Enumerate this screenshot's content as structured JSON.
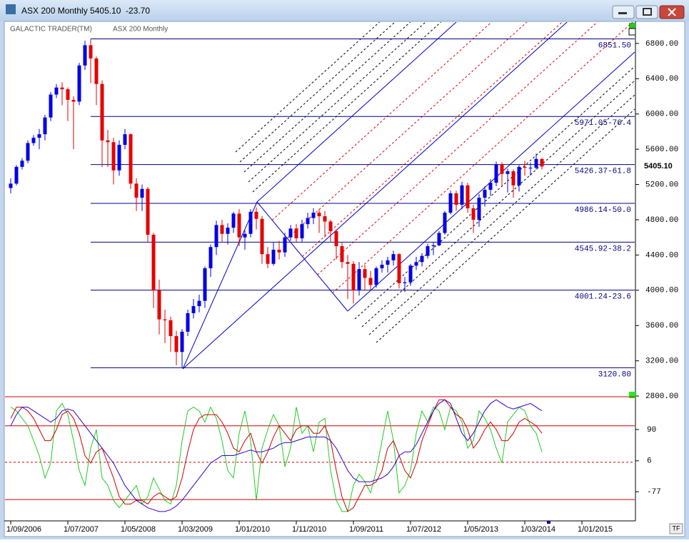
{
  "window": {
    "title": "ASX 200 Monthly 5405.10",
    "change": "-23.70",
    "corner_button": "TF"
  },
  "chart_data": {
    "type": "candlestick",
    "title": "GALACTIC TRADER(TM)",
    "subtitle": "ASX 200 Monthly",
    "x": [
      "2006-09",
      "2006-10",
      "2006-11",
      "2006-12",
      "2007-01",
      "2007-02",
      "2007-03",
      "2007-04",
      "2007-05",
      "2007-06",
      "2007-07",
      "2007-08",
      "2007-09",
      "2007-10",
      "2007-11",
      "2007-12",
      "2008-01",
      "2008-02",
      "2008-03",
      "2008-04",
      "2008-05",
      "2008-06",
      "2008-07",
      "2008-08",
      "2008-09",
      "2008-10",
      "2008-11",
      "2008-12",
      "2009-01",
      "2009-02",
      "2009-03",
      "2009-04",
      "2009-05",
      "2009-06",
      "2009-07",
      "2009-08",
      "2009-09",
      "2009-10",
      "2009-11",
      "2009-12",
      "2010-01",
      "2010-02",
      "2010-03",
      "2010-04",
      "2010-05",
      "2010-06",
      "2010-07",
      "2010-08",
      "2010-09",
      "2010-10",
      "2010-11",
      "2010-12",
      "2011-01",
      "2011-02",
      "2011-03",
      "2011-04",
      "2011-05",
      "2011-06",
      "2011-07",
      "2011-08",
      "2011-09",
      "2011-10",
      "2011-11",
      "2011-12",
      "2012-01",
      "2012-02",
      "2012-03",
      "2012-04",
      "2012-05",
      "2012-06",
      "2012-07",
      "2012-08",
      "2012-09",
      "2012-10",
      "2012-11",
      "2012-12",
      "2013-01",
      "2013-02",
      "2013-03",
      "2013-04",
      "2013-05",
      "2013-06",
      "2013-07",
      "2013-08",
      "2013-09",
      "2013-10",
      "2013-11",
      "2013-12",
      "2014-01",
      "2014-02",
      "2014-03",
      "2014-04",
      "2014-05",
      "2014-06"
    ],
    "open": [
      5160,
      5210,
      5400,
      5470,
      5670,
      5730,
      5770,
      5960,
      6220,
      6300,
      6280,
      6160,
      6140,
      6550,
      6780,
      6630,
      6340,
      5700,
      5680,
      5360,
      5650,
      5770,
      5210,
      5050,
      5150,
      4630,
      4000,
      3670,
      3660,
      3480,
      3300,
      3530,
      3740,
      3820,
      3880,
      4250,
      4490,
      4740,
      4640,
      4710,
      4870,
      4600,
      4640,
      4890,
      4810,
      4410,
      4300,
      4460,
      4430,
      4600,
      4700,
      4590,
      4750,
      4820,
      4880,
      4840,
      4780,
      4670,
      4500,
      4320,
      4300,
      4000,
      4240,
      4140,
      4060,
      4250,
      4290,
      4340,
      4410,
      4080,
      4090,
      4280,
      4320,
      4390,
      4500,
      4510,
      4650,
      4880,
      5100,
      4970,
      5190,
      4930,
      4800,
      5050,
      5140,
      5220,
      5430,
      5320,
      5350,
      5190,
      5400,
      5390,
      5390,
      5490
    ],
    "high": [
      5270,
      5420,
      5500,
      5700,
      5760,
      5830,
      5990,
      6250,
      6340,
      6360,
      6300,
      6200,
      6580,
      6830,
      6851,
      6650,
      6380,
      5820,
      5730,
      5700,
      5830,
      5780,
      5270,
      5200,
      5170,
      4650,
      4120,
      3780,
      3700,
      3540,
      3560,
      3780,
      3900,
      3950,
      4270,
      4520,
      4790,
      4800,
      4760,
      4890,
      4920,
      4680,
      4920,
      4940,
      4840,
      4490,
      4540,
      4560,
      4650,
      4740,
      4750,
      4800,
      4880,
      4930,
      4920,
      4900,
      4800,
      4690,
      4540,
      4400,
      4330,
      4320,
      4290,
      4220,
      4270,
      4340,
      4380,
      4450,
      4420,
      4150,
      4300,
      4380,
      4420,
      4530,
      4550,
      4670,
      4900,
      5130,
      5130,
      5230,
      5220,
      4970,
      5090,
      5180,
      5260,
      5460,
      5450,
      5380,
      5370,
      5420,
      5470,
      5450,
      5550,
      5500
    ],
    "low": [
      5100,
      5190,
      5370,
      5440,
      5640,
      5600,
      5700,
      5920,
      6180,
      6100,
      5920,
      5600,
      6100,
      6500,
      6350,
      6100,
      5400,
      5400,
      5200,
      5300,
      5600,
      5150,
      4900,
      4900,
      4550,
      3800,
      3500,
      3400,
      3300,
      3150,
      3120,
      3480,
      3680,
      3750,
      3800,
      4150,
      4400,
      4540,
      4520,
      4650,
      4500,
      4460,
      4600,
      4690,
      4300,
      4250,
      4280,
      4350,
      4380,
      4560,
      4550,
      4550,
      4700,
      4750,
      4650,
      4600,
      4550,
      4350,
      4250,
      3900,
      3850,
      3940,
      4000,
      4000,
      4030,
      4200,
      4200,
      4280,
      4020,
      3980,
      4050,
      4230,
      4270,
      4360,
      4400,
      4500,
      4630,
      4860,
      4900,
      4920,
      4880,
      4650,
      4720,
      4950,
      5070,
      5180,
      5180,
      5110,
      5050,
      5120,
      5300,
      5300,
      5370,
      5370
    ],
    "close": [
      5210,
      5400,
      5470,
      5670,
      5730,
      5770,
      5960,
      6220,
      6300,
      6280,
      6160,
      6140,
      6550,
      6780,
      6630,
      6340,
      5700,
      5680,
      5360,
      5650,
      5770,
      5210,
      5050,
      5150,
      4630,
      4000,
      3670,
      3660,
      3480,
      3300,
      3530,
      3740,
      3820,
      3880,
      4250,
      4490,
      4740,
      4640,
      4710,
      4870,
      4600,
      4640,
      4890,
      4810,
      4410,
      4300,
      4460,
      4430,
      4600,
      4700,
      4590,
      4750,
      4820,
      4880,
      4840,
      4780,
      4670,
      4500,
      4320,
      4300,
      4000,
      4240,
      4140,
      4060,
      4250,
      4290,
      4340,
      4410,
      4080,
      4090,
      4280,
      4320,
      4390,
      4500,
      4510,
      4650,
      4880,
      5100,
      4970,
      5190,
      4930,
      4800,
      5050,
      5140,
      5220,
      5430,
      5320,
      5350,
      5190,
      5400,
      5390,
      5390,
      5490,
      5405
    ],
    "up_color": "#0000e6",
    "down_color": "#e60000",
    "xlim": [
      "2006-08",
      "2015-10"
    ],
    "xticks": [
      {
        "value": "2006-09",
        "label": "1/09/2006"
      },
      {
        "value": "2007-07",
        "label": "1/07/2007"
      },
      {
        "value": "2008-05",
        "label": "1/05/2008"
      },
      {
        "value": "2009-03",
        "label": "1/03/2009"
      },
      {
        "value": "2010-01",
        "label": "1/01/2010"
      },
      {
        "value": "2010-11",
        "label": "1/11/2010"
      },
      {
        "value": "2011-09",
        "label": "1/09/2011"
      },
      {
        "value": "2012-07",
        "label": "1/07/2012"
      },
      {
        "value": "2013-05",
        "label": "1/05/2013"
      },
      {
        "value": "2014-03",
        "label": "1/03/2014"
      },
      {
        "value": "2015-01",
        "label": "1/01/2015"
      }
    ],
    "ylim": [
      2760,
      7050
    ],
    "yticks": [
      {
        "value": 2800,
        "label": "2800.00"
      },
      {
        "value": 3200,
        "label": "3200.00"
      },
      {
        "value": 3600,
        "label": "3600.00"
      },
      {
        "value": 4000,
        "label": "4000.00"
      },
      {
        "value": 4400,
        "label": "4400.00"
      },
      {
        "value": 4800,
        "label": "4800.00"
      },
      {
        "value": 5200,
        "label": "5200.00"
      },
      {
        "value": 5600,
        "label": "5600.00"
      },
      {
        "value": 6000,
        "label": "6000.00"
      },
      {
        "value": 6400,
        "label": "6400.00"
      },
      {
        "value": 6800,
        "label": "6800.00"
      }
    ],
    "levels": [
      {
        "value": 6851.5,
        "label": "6851.50"
      },
      {
        "value": 5971.05,
        "label": "5971.05-76.4"
      },
      {
        "value": 5426.37,
        "label": "5426.37-61.8"
      },
      {
        "value": 4986.14,
        "label": "4986.14-50.0"
      },
      {
        "value": 4545.92,
        "label": "4545.92-38.2"
      },
      {
        "value": 4001.24,
        "label": "4001.24-23.6"
      },
      {
        "value": 3120.8,
        "label": "3120.80"
      }
    ],
    "level_color": "#000080",
    "last_price": {
      "value": 5405.1,
      "label": "5405.10"
    },
    "indicator": {
      "ylim": [
        -136,
        178
      ],
      "yticks": [
        -77,
        6,
        90
      ],
      "hlines": [
        100,
        2,
        -98
      ],
      "dashed": [
        false,
        true,
        false
      ],
      "hline_color": "#cc0000",
      "series": [
        {
          "color": "#22cc22",
          "values": [
            150,
            140,
            120,
            100,
            60,
            20,
            -40,
            0,
            140,
            160,
            130,
            60,
            -20,
            -60,
            40,
            90,
            -40,
            -60,
            -100,
            -120,
            -100,
            -80,
            -60,
            -110,
            -90,
            -40,
            -70,
            -100,
            -110,
            -60,
            60,
            140,
            150,
            140,
            110,
            150,
            120,
            60,
            -20,
            -40,
            80,
            140,
            60,
            -100,
            40,
            90,
            130,
            100,
            -10,
            40,
            150,
            80,
            100,
            30,
            110,
            120,
            -20,
            -100,
            -130,
            -130,
            -60,
            -30,
            -50,
            -80,
            -20,
            60,
            140,
            60,
            -80,
            -60,
            -20,
            80,
            140,
            110,
            150,
            140,
            90,
            150,
            140,
            110,
            40,
            60,
            140,
            120,
            90,
            40,
            0,
            110,
            130,
            150,
            140,
            100,
            80,
            30
          ]
        },
        {
          "color": "#cc0000",
          "values": [
            120,
            150,
            150,
            140,
            120,
            90,
            60,
            60,
            90,
            130,
            140,
            120,
            80,
            20,
            0,
            30,
            40,
            0,
            -40,
            -90,
            -110,
            -110,
            -100,
            -100,
            -110,
            -90,
            -80,
            -90,
            -100,
            -90,
            -40,
            30,
            90,
            120,
            130,
            130,
            130,
            110,
            80,
            40,
            30,
            60,
            80,
            30,
            0,
            30,
            70,
            100,
            80,
            60,
            90,
            100,
            100,
            80,
            80,
            100,
            60,
            -20,
            -90,
            -130,
            -120,
            -90,
            -60,
            -60,
            -50,
            -20,
            40,
            60,
            20,
            -20,
            -40,
            0,
            60,
            100,
            140,
            170,
            170,
            150,
            130,
            120,
            90,
            40,
            60,
            90,
            110,
            90,
            60,
            60,
            80,
            110,
            120,
            110,
            100,
            80
          ]
        },
        {
          "color": "#3300cc",
          "values": [
            100,
            130,
            150,
            150,
            140,
            130,
            120,
            110,
            120,
            140,
            145,
            140,
            120,
            100,
            80,
            60,
            40,
            20,
            0,
            -30,
            -60,
            -80,
            -100,
            -110,
            -120,
            -125,
            -130,
            -130,
            -125,
            -115,
            -100,
            -80,
            -60,
            -40,
            -20,
            0,
            10,
            20,
            20,
            20,
            25,
            30,
            35,
            30,
            30,
            35,
            40,
            50,
            55,
            55,
            60,
            65,
            70,
            70,
            70,
            70,
            60,
            40,
            10,
            -20,
            -40,
            -50,
            -50,
            -50,
            -45,
            -40,
            -30,
            -10,
            20,
            30,
            30,
            50,
            80,
            110,
            140,
            160,
            170,
            160,
            120,
            80,
            60,
            80,
            110,
            140,
            160,
            170,
            160,
            150,
            145,
            150,
            155,
            160,
            150,
            140
          ]
        }
      ]
    }
  }
}
